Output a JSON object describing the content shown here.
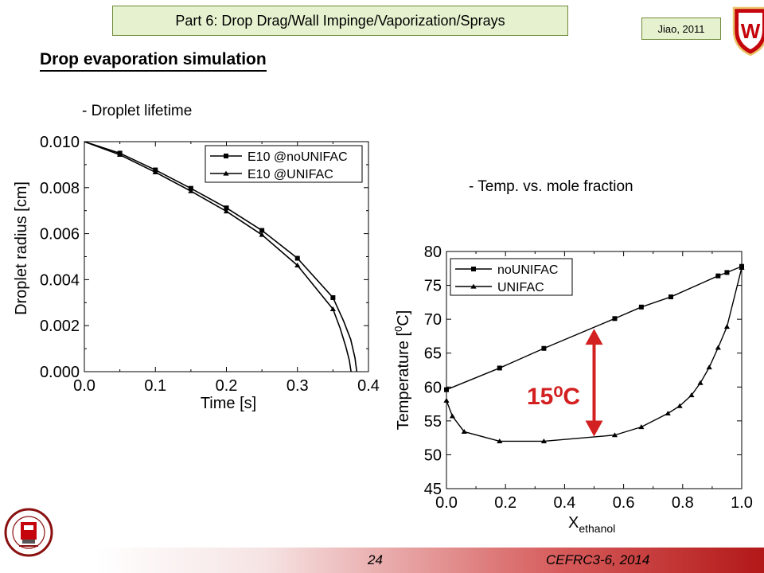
{
  "header": {
    "part_label": "Part 6: Drop Drag/Wall Impinge/Vaporization/Sprays",
    "reference": "Jiao, 2011",
    "crest_letter": "W"
  },
  "slide": {
    "title": "Drop evaporation simulation",
    "caption_left": "- Droplet lifetime",
    "caption_right": "- Temp. vs. mole fraction",
    "annotation": "15⁰C"
  },
  "footer": {
    "page_number": "24",
    "conference": "CEFRC3-6, 2014"
  },
  "colors": {
    "header_box_fill": "#e6f2cf",
    "header_box_border": "#6f8a3a",
    "annotation_red": "#d32020",
    "crest_red": "#c5050c",
    "footer_red": "#b21818"
  },
  "icons": [
    "uw-crest-logo",
    "engine-research-center-logo"
  ],
  "chart_data": [
    {
      "type": "line",
      "xlabel": "Time [s]",
      "ylabel": "Droplet radius [cm]",
      "xlim": [
        0.0,
        0.4
      ],
      "ylim": [
        0.0,
        0.01
      ],
      "xticks": [
        "0.0",
        "0.1",
        "0.2",
        "0.3",
        "0.4"
      ],
      "yticks": [
        "0.000",
        "0.002",
        "0.004",
        "0.006",
        "0.008",
        "0.010"
      ],
      "grid": false,
      "legend_position": "top-right",
      "series": [
        {
          "name": "E10 @noUNIFAC",
          "marker": "square",
          "x": [
            0,
            0.05,
            0.1,
            0.15,
            0.2,
            0.25,
            0.3,
            0.35,
            0.365,
            0.375,
            0.381,
            0.3835
          ],
          "y": [
            0.01,
            0.0095,
            0.00877,
            0.00797,
            0.00712,
            0.00614,
            0.00493,
            0.00322,
            0.0022,
            0.0014,
            0.0006,
            0
          ],
          "markers_x": [
            0.05,
            0.1,
            0.15,
            0.2,
            0.25,
            0.3,
            0.35
          ],
          "markers_y": [
            0.0095,
            0.00877,
            0.00797,
            0.00712,
            0.00614,
            0.00493,
            0.00322
          ]
        },
        {
          "name": "E10 @UNIFAC",
          "marker": "triangle",
          "x": [
            0,
            0.05,
            0.1,
            0.15,
            0.2,
            0.25,
            0.3,
            0.35,
            0.36,
            0.368,
            0.373,
            0.3755
          ],
          "y": [
            0.01,
            0.00943,
            0.00867,
            0.00785,
            0.00697,
            0.00595,
            0.00462,
            0.00272,
            0.0019,
            0.0011,
            0.0005,
            0
          ],
          "markers_x": [
            0.05,
            0.1,
            0.15,
            0.2,
            0.25,
            0.3,
            0.35
          ],
          "markers_y": [
            0.00943,
            0.00867,
            0.00785,
            0.00697,
            0.00595,
            0.00462,
            0.00272
          ]
        }
      ]
    },
    {
      "type": "line",
      "xlabel": "X",
      "xlabel_subscript": "ethanol",
      "ylabel_prefix": "Temperature [",
      "ylabel_superscript": "0",
      "ylabel_suffix": "C]",
      "xlim": [
        0.0,
        1.0
      ],
      "ylim": [
        45,
        80
      ],
      "xticks": [
        "0.0",
        "0.2",
        "0.4",
        "0.6",
        "0.8",
        "1.0"
      ],
      "yticks": [
        "45",
        "50",
        "55",
        "60",
        "65",
        "70",
        "75",
        "80"
      ],
      "grid": false,
      "legend_position": "top-left",
      "series": [
        {
          "name": "noUNIFAC",
          "marker": "square",
          "x": [
            0.0,
            0.18,
            0.33,
            0.57,
            0.66,
            0.76,
            0.92,
            0.95,
            1.0
          ],
          "y": [
            59.6,
            62.8,
            65.7,
            70.1,
            71.8,
            73.3,
            76.4,
            76.9,
            77.8
          ]
        },
        {
          "name": "UNIFAC",
          "marker": "triangle",
          "x": [
            0.0,
            0.02,
            0.06,
            0.18,
            0.33,
            0.57,
            0.66,
            0.75,
            0.79,
            0.83,
            0.86,
            0.89,
            0.92,
            0.95,
            1.0
          ],
          "y": [
            58.0,
            55.7,
            53.4,
            52.0,
            52.0,
            52.9,
            54.1,
            56.1,
            57.2,
            58.8,
            60.6,
            62.9,
            65.8,
            68.9,
            77.6
          ]
        }
      ],
      "annotation_arrow": {
        "x": 0.5,
        "y_from": 52.7,
        "y_to": 68.6
      }
    }
  ]
}
